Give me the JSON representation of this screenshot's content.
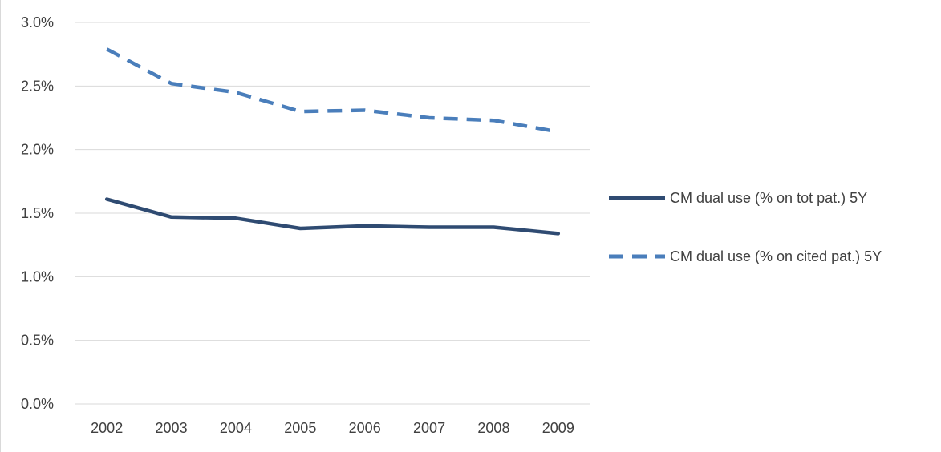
{
  "chart_data": {
    "type": "line",
    "title": "",
    "xlabel": "",
    "ylabel": "",
    "categories": [
      "2002",
      "2003",
      "2004",
      "2005",
      "2006",
      "2007",
      "2008",
      "2009"
    ],
    "ylim": [
      0,
      0.03
    ],
    "ytick_values": [
      0,
      0.005,
      0.01,
      0.015,
      0.02,
      0.025,
      0.03
    ],
    "ytick_labels": [
      "0.0%",
      "0.5%",
      "1.0%",
      "1.5%",
      "2.0%",
      "2.5%",
      "3.0%"
    ],
    "grid": "horizontal",
    "legend_position": "right",
    "series": [
      {
        "name": "CM dual use (% on tot pat.) 5Y",
        "values": [
          0.0161,
          0.0147,
          0.0146,
          0.0138,
          0.014,
          0.0139,
          0.0139,
          0.0134
        ],
        "color": "#2f4b72",
        "style": "solid"
      },
      {
        "name": "CM dual use (% on cited pat.) 5Y",
        "values": [
          0.0279,
          0.0252,
          0.0245,
          0.023,
          0.0231,
          0.0225,
          0.0223,
          0.0214
        ],
        "color": "#4a7ebb",
        "style": "dashed"
      }
    ]
  }
}
